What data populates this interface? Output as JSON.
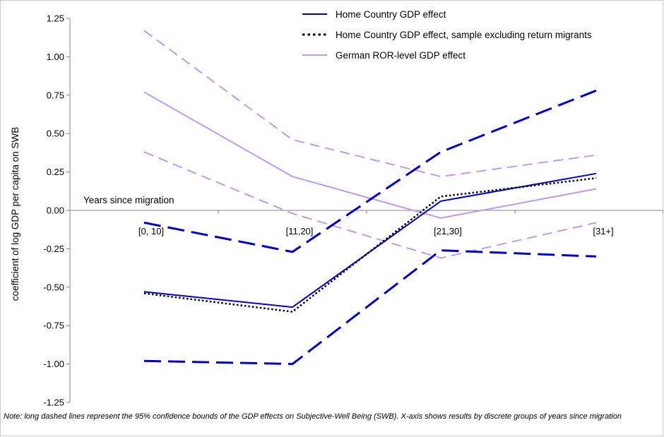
{
  "chart_data": {
    "type": "line",
    "categories": [
      "[0, 10]",
      "[11,20]",
      "[21,30]",
      "[31+]"
    ],
    "xlabel": "Years since migration",
    "ylabel": "coefficient  of log GDP per capita on SWB",
    "ylim": [
      -1.25,
      1.25
    ],
    "yticks": [
      1.25,
      1.0,
      0.75,
      0.5,
      0.25,
      0.0,
      -0.25,
      -0.5,
      -0.75,
      -1.0,
      -1.25
    ],
    "ytick_labels": [
      "1.25",
      "1.00",
      "0.75",
      "0.50",
      "0.25",
      "0.00",
      "-0.25",
      "-0.50",
      "-0.75",
      "-1.00",
      "-1.25"
    ],
    "grid": false,
    "legend_position": "top-right",
    "series": [
      {
        "name": "Home Country GDP effect",
        "values": [
          -0.53,
          -0.63,
          0.06,
          0.24
        ],
        "color": "#0000cc",
        "style": "solid",
        "in_legend": true
      },
      {
        "name": "Home Country GDP effect, sample excluding return migrants",
        "values": [
          -0.54,
          -0.66,
          0.09,
          0.21
        ],
        "color": "#000000",
        "style": "dotted",
        "in_legend": true
      },
      {
        "name": "German ROR-level GDP effect",
        "values": [
          0.77,
          0.22,
          -0.05,
          0.14
        ],
        "color": "#c099f0",
        "style": "solid",
        "in_legend": true
      },
      {
        "values": [
          -0.08,
          -0.27,
          0.38,
          0.78
        ],
        "color": "#0000cc",
        "style": "long-dash",
        "in_legend": false
      },
      {
        "values": [
          -0.98,
          -1.0,
          -0.26,
          -0.3
        ],
        "color": "#0000cc",
        "style": "long-dash",
        "in_legend": false
      },
      {
        "values": [
          1.17,
          0.46,
          0.22,
          0.36
        ],
        "color": "#c099f0",
        "style": "dash",
        "in_legend": false
      },
      {
        "values": [
          0.38,
          -0.02,
          -0.31,
          -0.08
        ],
        "color": "#c099f0",
        "style": "dash",
        "in_legend": false
      }
    ]
  },
  "note": "Note: long dashed lines represent the 95% confidence bounds of the GDP effects on Subjective-Well Being (SWB). X-axis shows results by discrete groups of years since migration"
}
